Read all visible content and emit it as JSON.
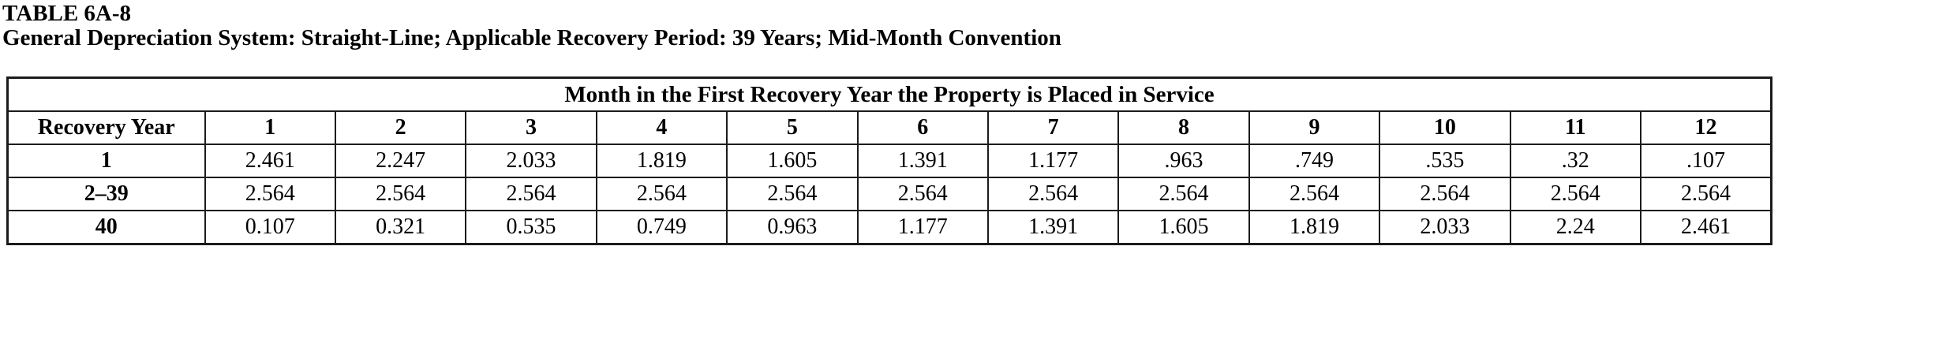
{
  "title": "TABLE 6A-8",
  "subtitle": "General Depreciation System: Straight-Line; Applicable Recovery Period: 39 Years; Mid-Month Convention",
  "table": {
    "span_header": "Month in the First Recovery Year the Property is Placed in Service",
    "row_header_label": "Recovery Year",
    "month_headers": [
      "1",
      "2",
      "3",
      "4",
      "5",
      "6",
      "7",
      "8",
      "9",
      "10",
      "11",
      "12"
    ],
    "rows": [
      {
        "label": "1",
        "values": [
          "2.461",
          "2.247",
          "2.033",
          "1.819",
          "1.605",
          "1.391",
          "1.177",
          ".963",
          ".749",
          ".535",
          ".32",
          ".107"
        ]
      },
      {
        "label": "2–39",
        "values": [
          "2.564",
          "2.564",
          "2.564",
          "2.564",
          "2.564",
          "2.564",
          "2.564",
          "2.564",
          "2.564",
          "2.564",
          "2.564",
          "2.564"
        ]
      },
      {
        "label": "40",
        "values": [
          "0.107",
          "0.321",
          "0.535",
          "0.749",
          "0.963",
          "1.177",
          "1.391",
          "1.605",
          "1.819",
          "2.033",
          "2.24",
          "2.461"
        ]
      }
    ]
  },
  "colors": {
    "text": "#000000",
    "border": "#1b1b1b",
    "background": "#ffffff"
  }
}
